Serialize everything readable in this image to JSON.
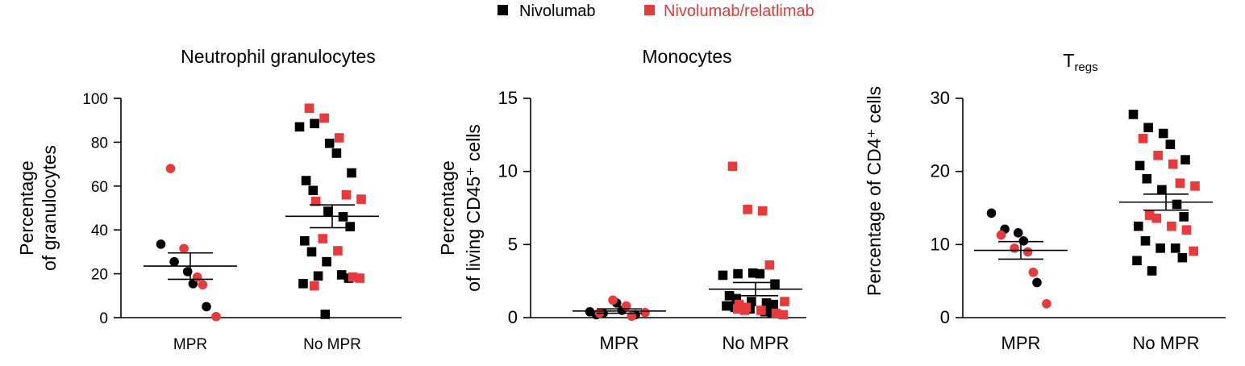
{
  "legend": {
    "items": [
      {
        "label": "Nivolumab",
        "color": "#000000",
        "shape": "square"
      },
      {
        "label": "Nivolumab/relatlimab",
        "color": "#e8393d",
        "shape": "square"
      }
    ]
  },
  "colors": {
    "nivolumab": "#000000",
    "nivolumab_relatlimab": "#e8393d",
    "axis": "#000000"
  },
  "chart_data": [
    {
      "type": "scatter",
      "title": "Neutrophil granulocytes",
      "ylabel": [
        "Percentage",
        "of granulocytes"
      ],
      "categories": [
        "MPR",
        "No MPR"
      ],
      "ylim": [
        0,
        100
      ],
      "yticks": [
        0,
        20,
        40,
        60,
        80,
        100
      ],
      "mean": [
        23.5,
        46.2
      ],
      "sem": [
        6.0,
        5.2
      ],
      "points": [
        {
          "group": 0,
          "series": "nivolumab",
          "shape": "circle",
          "values": [
            33.5,
            25.5,
            21,
            15.5,
            5
          ]
        },
        {
          "group": 0,
          "series": "nivolumab_relatlimab",
          "shape": "circle",
          "values": [
            68,
            31.5,
            18.5,
            15,
            0.5
          ]
        },
        {
          "group": 1,
          "series": "nivolumab",
          "shape": "square",
          "values": [
            87,
            88.5,
            79.5,
            75,
            66,
            62.5,
            58,
            48.5,
            46,
            41.5,
            35,
            30,
            25.5,
            19.5,
            18,
            15.5,
            19,
            1.5
          ]
        },
        {
          "group": 1,
          "series": "nivolumab_relatlimab",
          "shape": "square",
          "values": [
            95.5,
            91,
            82,
            56,
            54,
            53,
            36,
            30.5,
            18.5,
            18,
            14.5
          ]
        }
      ]
    },
    {
      "type": "scatter",
      "title": "Monocytes",
      "ylabel": [
        "Percentage",
        "of living CD45⁺ cells"
      ],
      "categories": [
        "MPR",
        "No MPR"
      ],
      "ylim": [
        0,
        15
      ],
      "yticks": [
        0,
        5,
        10,
        15
      ],
      "mean": [
        0.45,
        1.95
      ],
      "sem": [
        0.15,
        0.45
      ],
      "points": [
        {
          "group": 0,
          "series": "nivolumab",
          "shape": "circle",
          "values": [
            0.4,
            0.3,
            1.0,
            0.5,
            0.2,
            0.2
          ]
        },
        {
          "group": 0,
          "series": "nivolumab_relatlimab",
          "shape": "circle",
          "values": [
            0.3,
            1.2,
            0.8,
            0.1,
            0.35
          ]
        },
        {
          "group": 1,
          "series": "nivolumab",
          "shape": "square",
          "values": [
            2.9,
            3.0,
            3.05,
            3.0,
            2.3,
            1.5,
            1.3,
            1.1,
            1.0,
            0.9,
            0.8,
            0.7,
            0.6,
            0.4,
            0.3,
            0.8,
            0.7,
            0.6
          ]
        },
        {
          "group": 1,
          "series": "nivolumab_relatlimab",
          "shape": "square",
          "values": [
            10.35,
            7.4,
            7.3,
            3.6,
            1.1,
            0.9,
            0.7,
            0.5,
            0.3,
            0.2,
            0.6,
            0.5
          ]
        }
      ]
    },
    {
      "type": "scatter",
      "title": "T",
      "title_sub": "regs",
      "ylabel": [
        "Percentage of CD4⁺ cells"
      ],
      "categories": [
        "MPR",
        "No MPR"
      ],
      "ylim": [
        0,
        30
      ],
      "yticks": [
        0,
        10,
        20,
        30
      ],
      "mean": [
        9.2,
        15.8
      ],
      "sem": [
        1.2,
        1.1
      ],
      "points": [
        {
          "group": 0,
          "series": "nivolumab",
          "shape": "circle",
          "values": [
            14.3,
            12.1,
            11.6,
            10.5,
            4.8
          ]
        },
        {
          "group": 0,
          "series": "nivolumab_relatlimab",
          "shape": "circle",
          "values": [
            11.3,
            9.5,
            9.0,
            6.2,
            1.9
          ]
        },
        {
          "group": 1,
          "series": "nivolumab",
          "shape": "square",
          "values": [
            27.8,
            26,
            25.2,
            23.7,
            21.6,
            20.8,
            19,
            17.5,
            15.5,
            13.8,
            12.5,
            10.5,
            9.5,
            9.5,
            8.2,
            7.8,
            6.4
          ]
        },
        {
          "group": 1,
          "series": "nivolumab_relatlimab",
          "shape": "square",
          "values": [
            24.5,
            22.2,
            21.0,
            18.4,
            18.0,
            14.0,
            13.6,
            12.5,
            12.0,
            9.1
          ]
        }
      ]
    }
  ]
}
